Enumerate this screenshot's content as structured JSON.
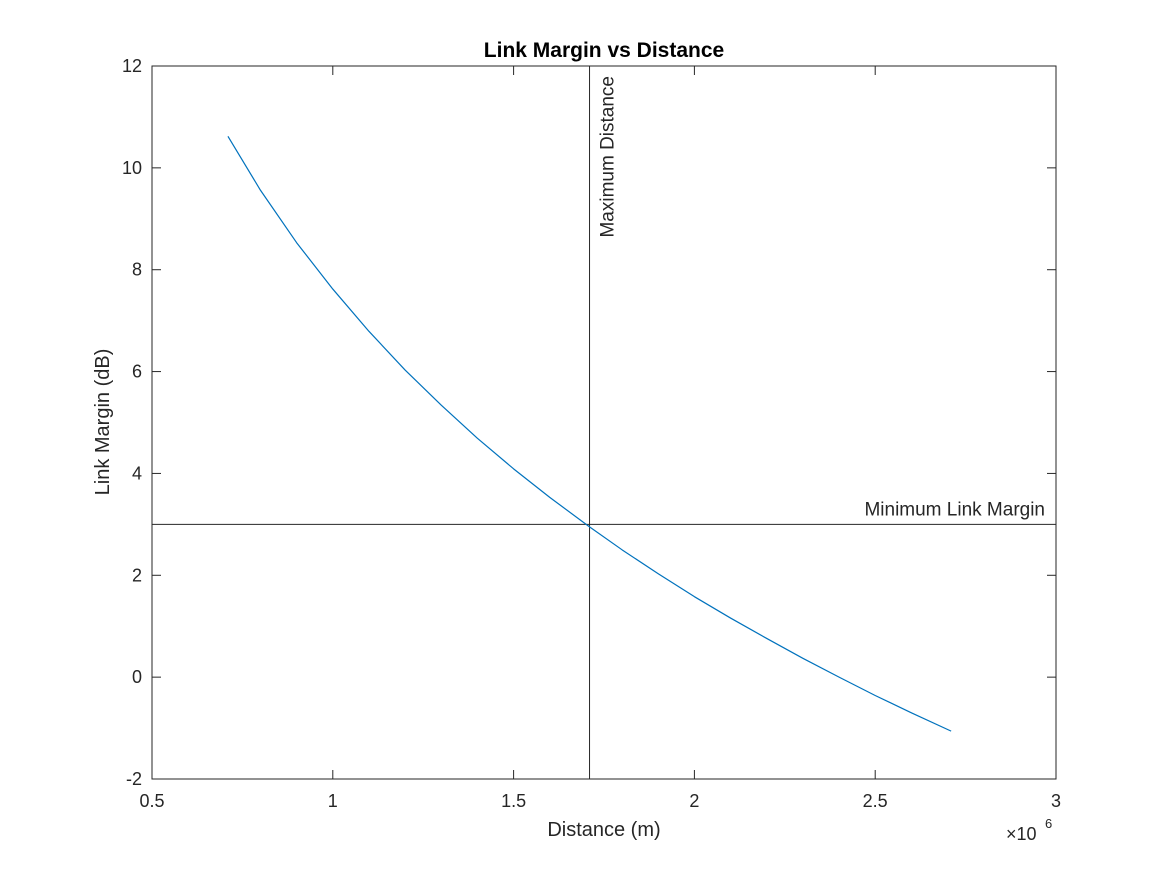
{
  "chart_data": {
    "type": "line",
    "title": "Link Margin vs Distance",
    "xlabel": "Distance (m)",
    "ylabel": "Link Margin (dB)",
    "x_exponent_label": "×10",
    "x_exponent": "6",
    "xlim": [
      0.5,
      3
    ],
    "ylim": [
      -2,
      12
    ],
    "x_scale_factor": 1000000,
    "xticks": [
      0.5,
      1,
      1.5,
      2,
      2.5,
      3
    ],
    "xtick_labels": [
      "0.5",
      "1",
      "1.5",
      "2",
      "2.5",
      "3"
    ],
    "yticks": [
      -2,
      0,
      2,
      4,
      6,
      8,
      10,
      12
    ],
    "ytick_labels": [
      "-2",
      "0",
      "2",
      "4",
      "6",
      "8",
      "10",
      "12"
    ],
    "grid": false,
    "series": [
      {
        "color": "#0072BD",
        "x": [
          710000,
          800000,
          900000,
          1000000,
          1100000,
          1200000,
          1300000,
          1400000,
          1500000,
          1600000,
          1710000,
          1800000,
          1900000,
          2000000,
          2100000,
          2200000,
          2300000,
          2400000,
          2500000,
          2600000,
          2710000
        ],
        "y": [
          10.62,
          9.56,
          8.53,
          7.62,
          6.79,
          6.03,
          5.34,
          4.69,
          4.09,
          3.53,
          2.95,
          2.5,
          2.03,
          1.58,
          1.16,
          0.76,
          0.37,
          0.0,
          -0.36,
          -0.7,
          -1.06
        ]
      }
    ],
    "annotations": [
      {
        "type": "vline",
        "x": 1710000,
        "label": "Maximum Distance",
        "color": "#262626"
      },
      {
        "type": "hline",
        "y": 3,
        "label": "Minimum Link Margin",
        "color": "#262626"
      }
    ]
  }
}
